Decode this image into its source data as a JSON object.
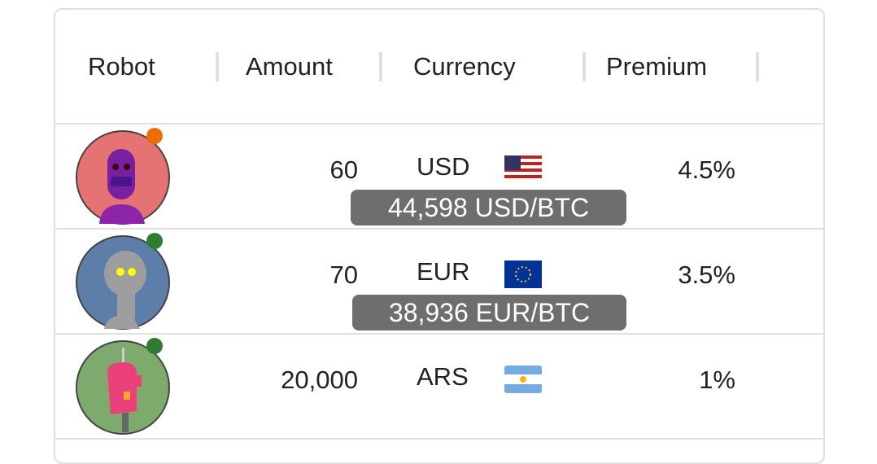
{
  "table": {
    "columns": [
      "Robot",
      "Amount",
      "Currency",
      "Premium"
    ],
    "rows": [
      {
        "amount": "60",
        "currency": "USD",
        "flag": "us-flag",
        "premium": "4.5%",
        "status_color": "#ef6c00",
        "avatar_bg": "#e57373",
        "robot_color": "#7b1fa2"
      },
      {
        "amount": "70",
        "currency": "EUR",
        "flag": "eu-flag",
        "premium": "3.5%",
        "status_color": "#2e7d32",
        "avatar_bg": "#5c7ea8",
        "robot_color": "#9e9e9e"
      },
      {
        "amount": "20,000",
        "currency": "ARS",
        "flag": "ar-flag",
        "premium": "1%",
        "status_color": "#2e7d32",
        "avatar_bg": "#7faa6e",
        "robot_color": "#ec407a"
      }
    ]
  },
  "tooltips": [
    "44,598 USD/BTC",
    "38,936 EUR/BTC"
  ]
}
